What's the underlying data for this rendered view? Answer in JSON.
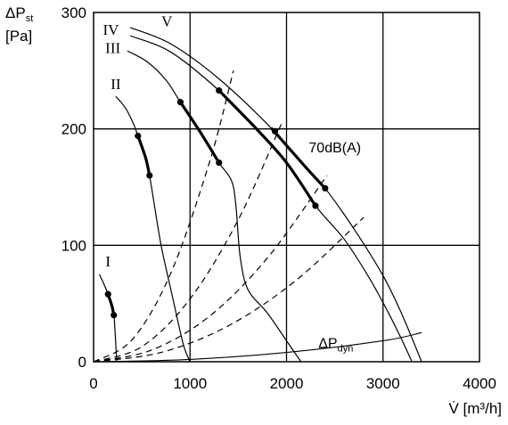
{
  "chart_data": {
    "type": "line",
    "xlabel": "V̇ [m³/h]",
    "ylabel_main": "ΔP",
    "ylabel_sub": "st",
    "ylabel_unit": "[Pa]",
    "xlim": [
      0,
      4000
    ],
    "ylim": [
      0,
      300
    ],
    "xticks": [
      "0",
      "1000",
      "2000",
      "3000",
      "4000"
    ],
    "yticks": [
      "0",
      "100",
      "200",
      "300"
    ],
    "grid": true,
    "series": [
      {
        "name": "I",
        "label_at": [
          150,
          82
        ],
        "x": [
          60,
          100,
          150,
          190,
          210,
          220,
          240
        ],
        "y": [
          75,
          68,
          58,
          48,
          40,
          30,
          0
        ]
      },
      {
        "name": "II",
        "label_at": [
          230,
          234
        ],
        "x": [
          230,
          330,
          410,
          460,
          540,
          580,
          620,
          700,
          820,
          930,
          1000
        ],
        "y": [
          228,
          218,
          205,
          194,
          175,
          160,
          140,
          100,
          55,
          15,
          0
        ]
      },
      {
        "name": "III",
        "label_at": [
          200,
          265
        ],
        "x": [
          350,
          550,
          750,
          900,
          1100,
          1300,
          1400,
          1450,
          1480,
          1520,
          1600,
          1800,
          2000,
          2150
        ],
        "y": [
          267,
          258,
          242,
          223,
          198,
          171,
          160,
          150,
          130,
          90,
          62,
          42,
          18,
          0
        ]
      },
      {
        "name": "IV",
        "label_at": [
          180,
          281
        ],
        "x": [
          380,
          800,
          1300,
          1700,
          2000,
          2300,
          2600,
          2850,
          3050,
          3200,
          3300
        ],
        "y": [
          280,
          266,
          233,
          199,
          171,
          134,
          105,
          73,
          43,
          18,
          0
        ]
      },
      {
        "name": "V",
        "label_at": [
          760,
          288
        ],
        "x": [
          380,
          800,
          1300,
          1850,
          2200,
          2400,
          2700,
          3000,
          3200,
          3400
        ],
        "y": [
          287,
          273,
          243,
          200,
          167,
          149,
          114,
          74,
          40,
          0
        ]
      }
    ],
    "highlighted_segments": [
      {
        "series": "I",
        "x": [
          150,
          190,
          210
        ],
        "y": [
          58,
          48,
          40
        ]
      },
      {
        "series": "II",
        "x": [
          460,
          540,
          580
        ],
        "y": [
          194,
          175,
          160
        ]
      },
      {
        "series": "III",
        "x": [
          900,
          1100,
          1300
        ],
        "y": [
          223,
          198,
          171
        ]
      },
      {
        "series": "IV",
        "x": [
          1300,
          1700,
          2000,
          2300
        ],
        "y": [
          233,
          199,
          171,
          134
        ]
      },
      {
        "series": "V",
        "x": [
          1850,
          2200,
          2400
        ],
        "y": [
          200,
          167,
          149
        ]
      }
    ],
    "operating_points": [
      {
        "x": 150,
        "y": 58
      },
      {
        "x": 210,
        "y": 40
      },
      {
        "x": 460,
        "y": 194
      },
      {
        "x": 580,
        "y": 160
      },
      {
        "x": 900,
        "y": 223
      },
      {
        "x": 1300,
        "y": 171
      },
      {
        "x": 1300,
        "y": 233
      },
      {
        "x": 2300,
        "y": 134
      },
      {
        "x": 1880,
        "y": 198
      },
      {
        "x": 2400,
        "y": 149
      }
    ],
    "system_curves": [
      {
        "x": [
          0,
          400,
          800,
          1200,
          1450
        ],
        "y": [
          0,
          19,
          76,
          171,
          250
        ]
      },
      {
        "x": [
          0,
          500,
          1000,
          1500,
          1950
        ],
        "y": [
          0,
          13,
          54,
          122,
          205
        ]
      },
      {
        "x": [
          0,
          600,
          1200,
          1800,
          2420
        ],
        "y": [
          0,
          10,
          39,
          89,
          160
        ]
      },
      {
        "x": [
          0,
          700,
          1400,
          2100,
          2800
        ],
        "y": [
          0,
          8,
          31,
          70,
          124
        ]
      }
    ],
    "dynamic_pressure_curve": {
      "x": [
        0,
        1000,
        2000,
        3000,
        3400
      ],
      "y": [
        0,
        2,
        8,
        18,
        25
      ]
    },
    "annotations": {
      "noise_label": "70dB(A)",
      "noise_label_at": [
        2230,
        180
      ],
      "dyn_label_main": "ΔP",
      "dyn_label_sub": "dyn",
      "dyn_label_at": [
        2330,
        12
      ]
    }
  }
}
